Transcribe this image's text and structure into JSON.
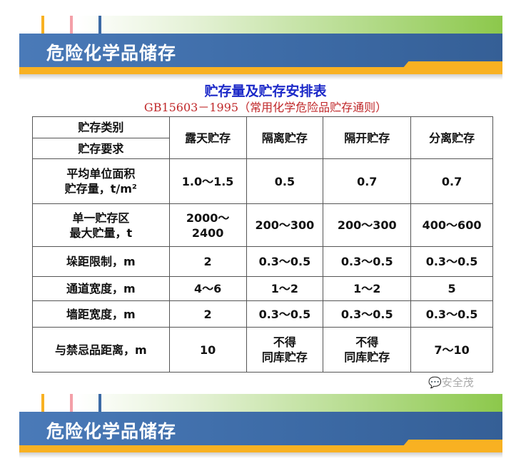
{
  "banner": {
    "title": "危险化学品储存",
    "colors": {
      "blue": "#3f6ea8",
      "orange": "#f8b122",
      "green": "#8cc84b"
    }
  },
  "table_title": "贮存量及贮存安排表",
  "table_subtitle": "GB15603－1995（常用化学危险品贮存通则）",
  "header": {
    "type_label": "贮存类别",
    "req_label": "贮存要求",
    "columns": [
      "露天贮存",
      "隔离贮存",
      "隔开贮存",
      "分离贮存"
    ]
  },
  "rows": [
    {
      "label": [
        "平均单位面积",
        "贮存量，t/m²"
      ],
      "values": [
        "1.0～1.5",
        "0.5",
        "0.7",
        "0.7"
      ]
    },
    {
      "label": [
        "单一贮存区",
        "最大贮量，t"
      ],
      "values": [
        "2000～\n2400",
        "200～300",
        "200～300",
        "400～600"
      ]
    },
    {
      "label": [
        "垛距限制，m"
      ],
      "values": [
        "2",
        "0.3～0.5",
        "0.3～0.5",
        "0.3～0.5"
      ]
    },
    {
      "label": [
        "通道宽度，m"
      ],
      "values": [
        "4～6",
        "1～2",
        "1～2",
        "5"
      ]
    },
    {
      "label": [
        "墙距宽度，m"
      ],
      "values": [
        "2",
        "0.3～0.5",
        "0.3～0.5",
        "0.3～0.5"
      ]
    },
    {
      "label": [
        "与禁忌品距离，m"
      ],
      "values": [
        "10",
        "不得\n同库贮存",
        "不得\n同库贮存",
        "7～10"
      ]
    }
  ],
  "watermark": "安全茂"
}
